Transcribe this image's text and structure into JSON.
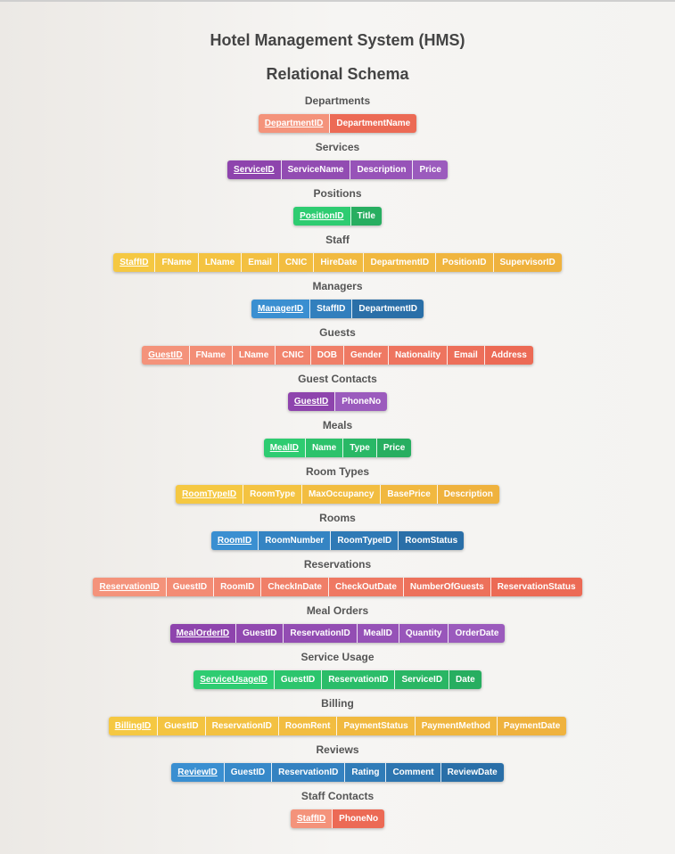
{
  "title": "Hotel Management System (HMS)",
  "subtitle": "Relational Schema",
  "colors": {
    "orange": [
      "#f4937b",
      "#ec6a55"
    ],
    "purple": [
      "#8e44ad",
      "#9b5bbd"
    ],
    "green": [
      "#2ecc71",
      "#27ae60"
    ],
    "yellow": [
      "#f5c842",
      "#efb23e"
    ],
    "blue": [
      "#3a8fd1",
      "#2a6fa8"
    ]
  },
  "tables": [
    {
      "name": "Departments",
      "color": "orange",
      "pk": "DepartmentID",
      "attrs": [
        "DepartmentName"
      ]
    },
    {
      "name": "Services",
      "color": "purple",
      "pk": "ServiceID",
      "attrs": [
        "ServiceName",
        "Description",
        "Price"
      ]
    },
    {
      "name": "Positions",
      "color": "green",
      "pk": "PositionID",
      "attrs": [
        "Title"
      ]
    },
    {
      "name": "Staff",
      "color": "yellow",
      "pk": "StaffID",
      "attrs": [
        "FName",
        "LName",
        "Email",
        "CNIC",
        "HireDate",
        "DepartmentID",
        "PositionID",
        "SupervisorID"
      ]
    },
    {
      "name": "Managers",
      "color": "blue",
      "pk": "ManagerID",
      "attrs": [
        "StaffID",
        "DepartmentID"
      ]
    },
    {
      "name": "Guests",
      "color": "orange",
      "pk": "GuestID",
      "attrs": [
        "FName",
        "LName",
        "CNIC",
        "DOB",
        "Gender",
        "Nationality",
        "Email",
        "Address"
      ]
    },
    {
      "name": "Guest Contacts",
      "color": "purple",
      "pk": "GuestID",
      "attrs": [
        "PhoneNo"
      ]
    },
    {
      "name": "Meals",
      "color": "green",
      "pk": "MealID",
      "attrs": [
        "Name",
        "Type",
        "Price"
      ]
    },
    {
      "name": "Room Types",
      "color": "yellow",
      "pk": "RoomTypeID",
      "attrs": [
        "RoomType",
        "MaxOccupancy",
        "BasePrice",
        "Description"
      ]
    },
    {
      "name": "Rooms",
      "color": "blue",
      "pk": "RoomID",
      "attrs": [
        "RoomNumber",
        "RoomTypeID",
        "RoomStatus"
      ]
    },
    {
      "name": "Reservations",
      "color": "orange",
      "pk": "ReservationID",
      "attrs": [
        "GuestID",
        "RoomID",
        "CheckInDate",
        "CheckOutDate",
        "NumberOfGuests",
        "ReservationStatus"
      ]
    },
    {
      "name": "Meal Orders",
      "color": "purple",
      "pk": "MealOrderID",
      "attrs": [
        "GuestID",
        "ReservationID",
        "MealID",
        "Quantity",
        "OrderDate"
      ]
    },
    {
      "name": "Service Usage",
      "color": "green",
      "pk": "ServiceUsageID",
      "attrs": [
        "GuestID",
        "ReservationID",
        "ServiceID",
        "Date"
      ]
    },
    {
      "name": "Billing",
      "color": "yellow",
      "pk": "BillingID",
      "attrs": [
        "GuestID",
        "ReservationID",
        "RoomRent",
        "PaymentStatus",
        "PaymentMethod",
        "PaymentDate"
      ]
    },
    {
      "name": "Reviews",
      "color": "blue",
      "pk": "ReviewID",
      "attrs": [
        "GuestID",
        "ReservationID",
        "Rating",
        "Comment",
        "ReviewDate"
      ]
    },
    {
      "name": "Staff Contacts",
      "color": "orange",
      "pk": "StaffID",
      "attrs": [
        "PhoneNo"
      ]
    }
  ]
}
